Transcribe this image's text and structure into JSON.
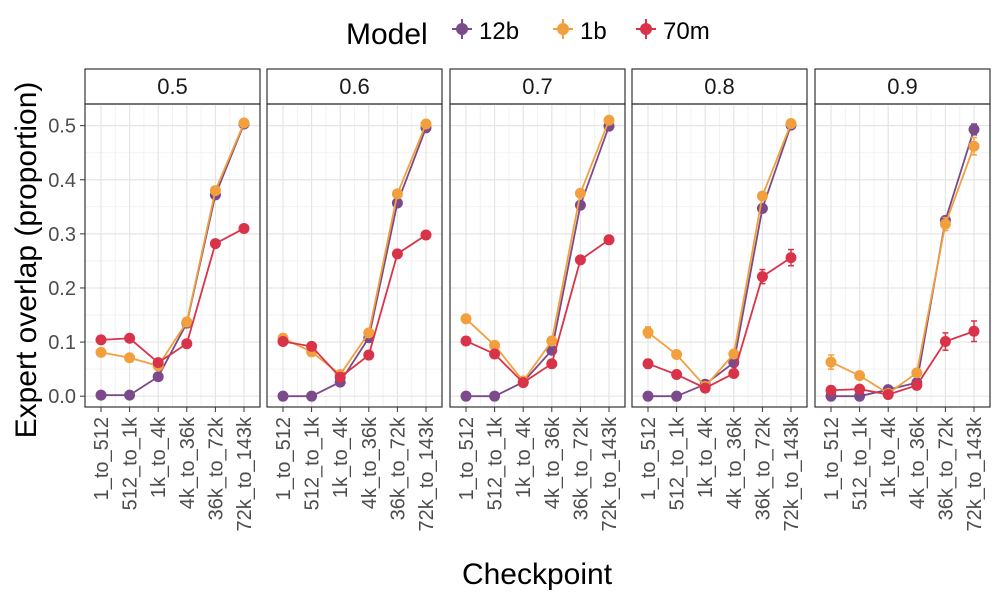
{
  "chart_data": {
    "type": "line",
    "legend": {
      "title": "Model",
      "position": "top"
    },
    "xlabel": "Checkpoint",
    "ylabel": "Expert overlap (proportion)",
    "categories": [
      "1_to_512",
      "512_to_1k",
      "1k_to_4k",
      "4k_to_36k",
      "36k_to_72k",
      "72k_to_143k"
    ],
    "ylim": [
      -0.02,
      0.54
    ],
    "yticks": [
      0.0,
      0.1,
      0.2,
      0.3,
      0.4,
      0.5
    ],
    "ytick_labels": [
      "0.0",
      "0.1",
      "0.2",
      "0.3",
      "0.4",
      "0.5"
    ],
    "series_colors": {
      "12b": "#7b4a8a",
      "1b": "#f2a03d",
      "70m": "#d9334a"
    },
    "panels": [
      {
        "label": "0.5",
        "series": [
          {
            "name": "12b",
            "values": [
              0.002,
              0.002,
              0.036,
              0.135,
              0.372,
              0.503
            ],
            "err": [
              0,
              0,
              0,
              0,
              0,
              0
            ]
          },
          {
            "name": "1b",
            "values": [
              0.081,
              0.071,
              0.056,
              0.137,
              0.38,
              0.505
            ],
            "err": [
              0,
              0,
              0,
              0,
              0,
              0
            ]
          },
          {
            "name": "70m",
            "values": [
              0.104,
              0.107,
              0.062,
              0.097,
              0.282,
              0.31
            ],
            "err": [
              0,
              0,
              0,
              0,
              0,
              0
            ]
          }
        ]
      },
      {
        "label": "0.6",
        "series": [
          {
            "name": "12b",
            "values": [
              0.0,
              0.0,
              0.026,
              0.108,
              0.357,
              0.496
            ],
            "err": [
              0,
              0,
              0,
              0,
              0,
              0
            ]
          },
          {
            "name": "1b",
            "values": [
              0.107,
              0.082,
              0.04,
              0.117,
              0.374,
              0.503
            ],
            "err": [
              0,
              0,
              0,
              0,
              0,
              0
            ]
          },
          {
            "name": "70m",
            "values": [
              0.101,
              0.092,
              0.035,
              0.076,
              0.263,
              0.298
            ],
            "err": [
              0,
              0,
              0,
              0,
              0,
              0
            ]
          }
        ]
      },
      {
        "label": "0.7",
        "series": [
          {
            "name": "12b",
            "values": [
              0.0,
              0.0,
              0.026,
              0.085,
              0.353,
              0.499
            ],
            "err": [
              0,
              0,
              0,
              0,
              0,
              0
            ]
          },
          {
            "name": "1b",
            "values": [
              0.143,
              0.094,
              0.028,
              0.102,
              0.375,
              0.51
            ],
            "err": [
              0,
              0,
              0,
              0,
              0,
              0
            ]
          },
          {
            "name": "70m",
            "values": [
              0.102,
              0.078,
              0.025,
              0.06,
              0.252,
              0.289
            ],
            "err": [
              0,
              0,
              0,
              0,
              0,
              0.007
            ]
          }
        ]
      },
      {
        "label": "0.8",
        "series": [
          {
            "name": "12b",
            "values": [
              0.0,
              0.0,
              0.022,
              0.062,
              0.347,
              0.501
            ],
            "err": [
              0,
              0,
              0,
              0,
              0,
              0
            ]
          },
          {
            "name": "1b",
            "values": [
              0.118,
              0.077,
              0.018,
              0.078,
              0.37,
              0.504
            ],
            "err": [
              0.01,
              0,
              0,
              0,
              0,
              0
            ]
          },
          {
            "name": "70m",
            "values": [
              0.06,
              0.04,
              0.015,
              0.042,
              0.221,
              0.256
            ],
            "err": [
              0.008,
              0,
              0,
              0,
              0.013,
              0.015
            ]
          }
        ]
      },
      {
        "label": "0.9",
        "series": [
          {
            "name": "12b",
            "values": [
              0.0,
              0.0,
              0.012,
              0.025,
              0.325,
              0.493
            ],
            "err": [
              0,
              0,
              0,
              0,
              0,
              0.01
            ]
          },
          {
            "name": "1b",
            "values": [
              0.063,
              0.038,
              0.005,
              0.043,
              0.318,
              0.462
            ],
            "err": [
              0.013,
              0.007,
              0,
              0,
              0.012,
              0.016
            ]
          },
          {
            "name": "70m",
            "values": [
              0.011,
              0.013,
              0.003,
              0.02,
              0.101,
              0.12
            ],
            "err": [
              0,
              0,
              0,
              0,
              0.016,
              0.019
            ]
          }
        ]
      }
    ]
  }
}
